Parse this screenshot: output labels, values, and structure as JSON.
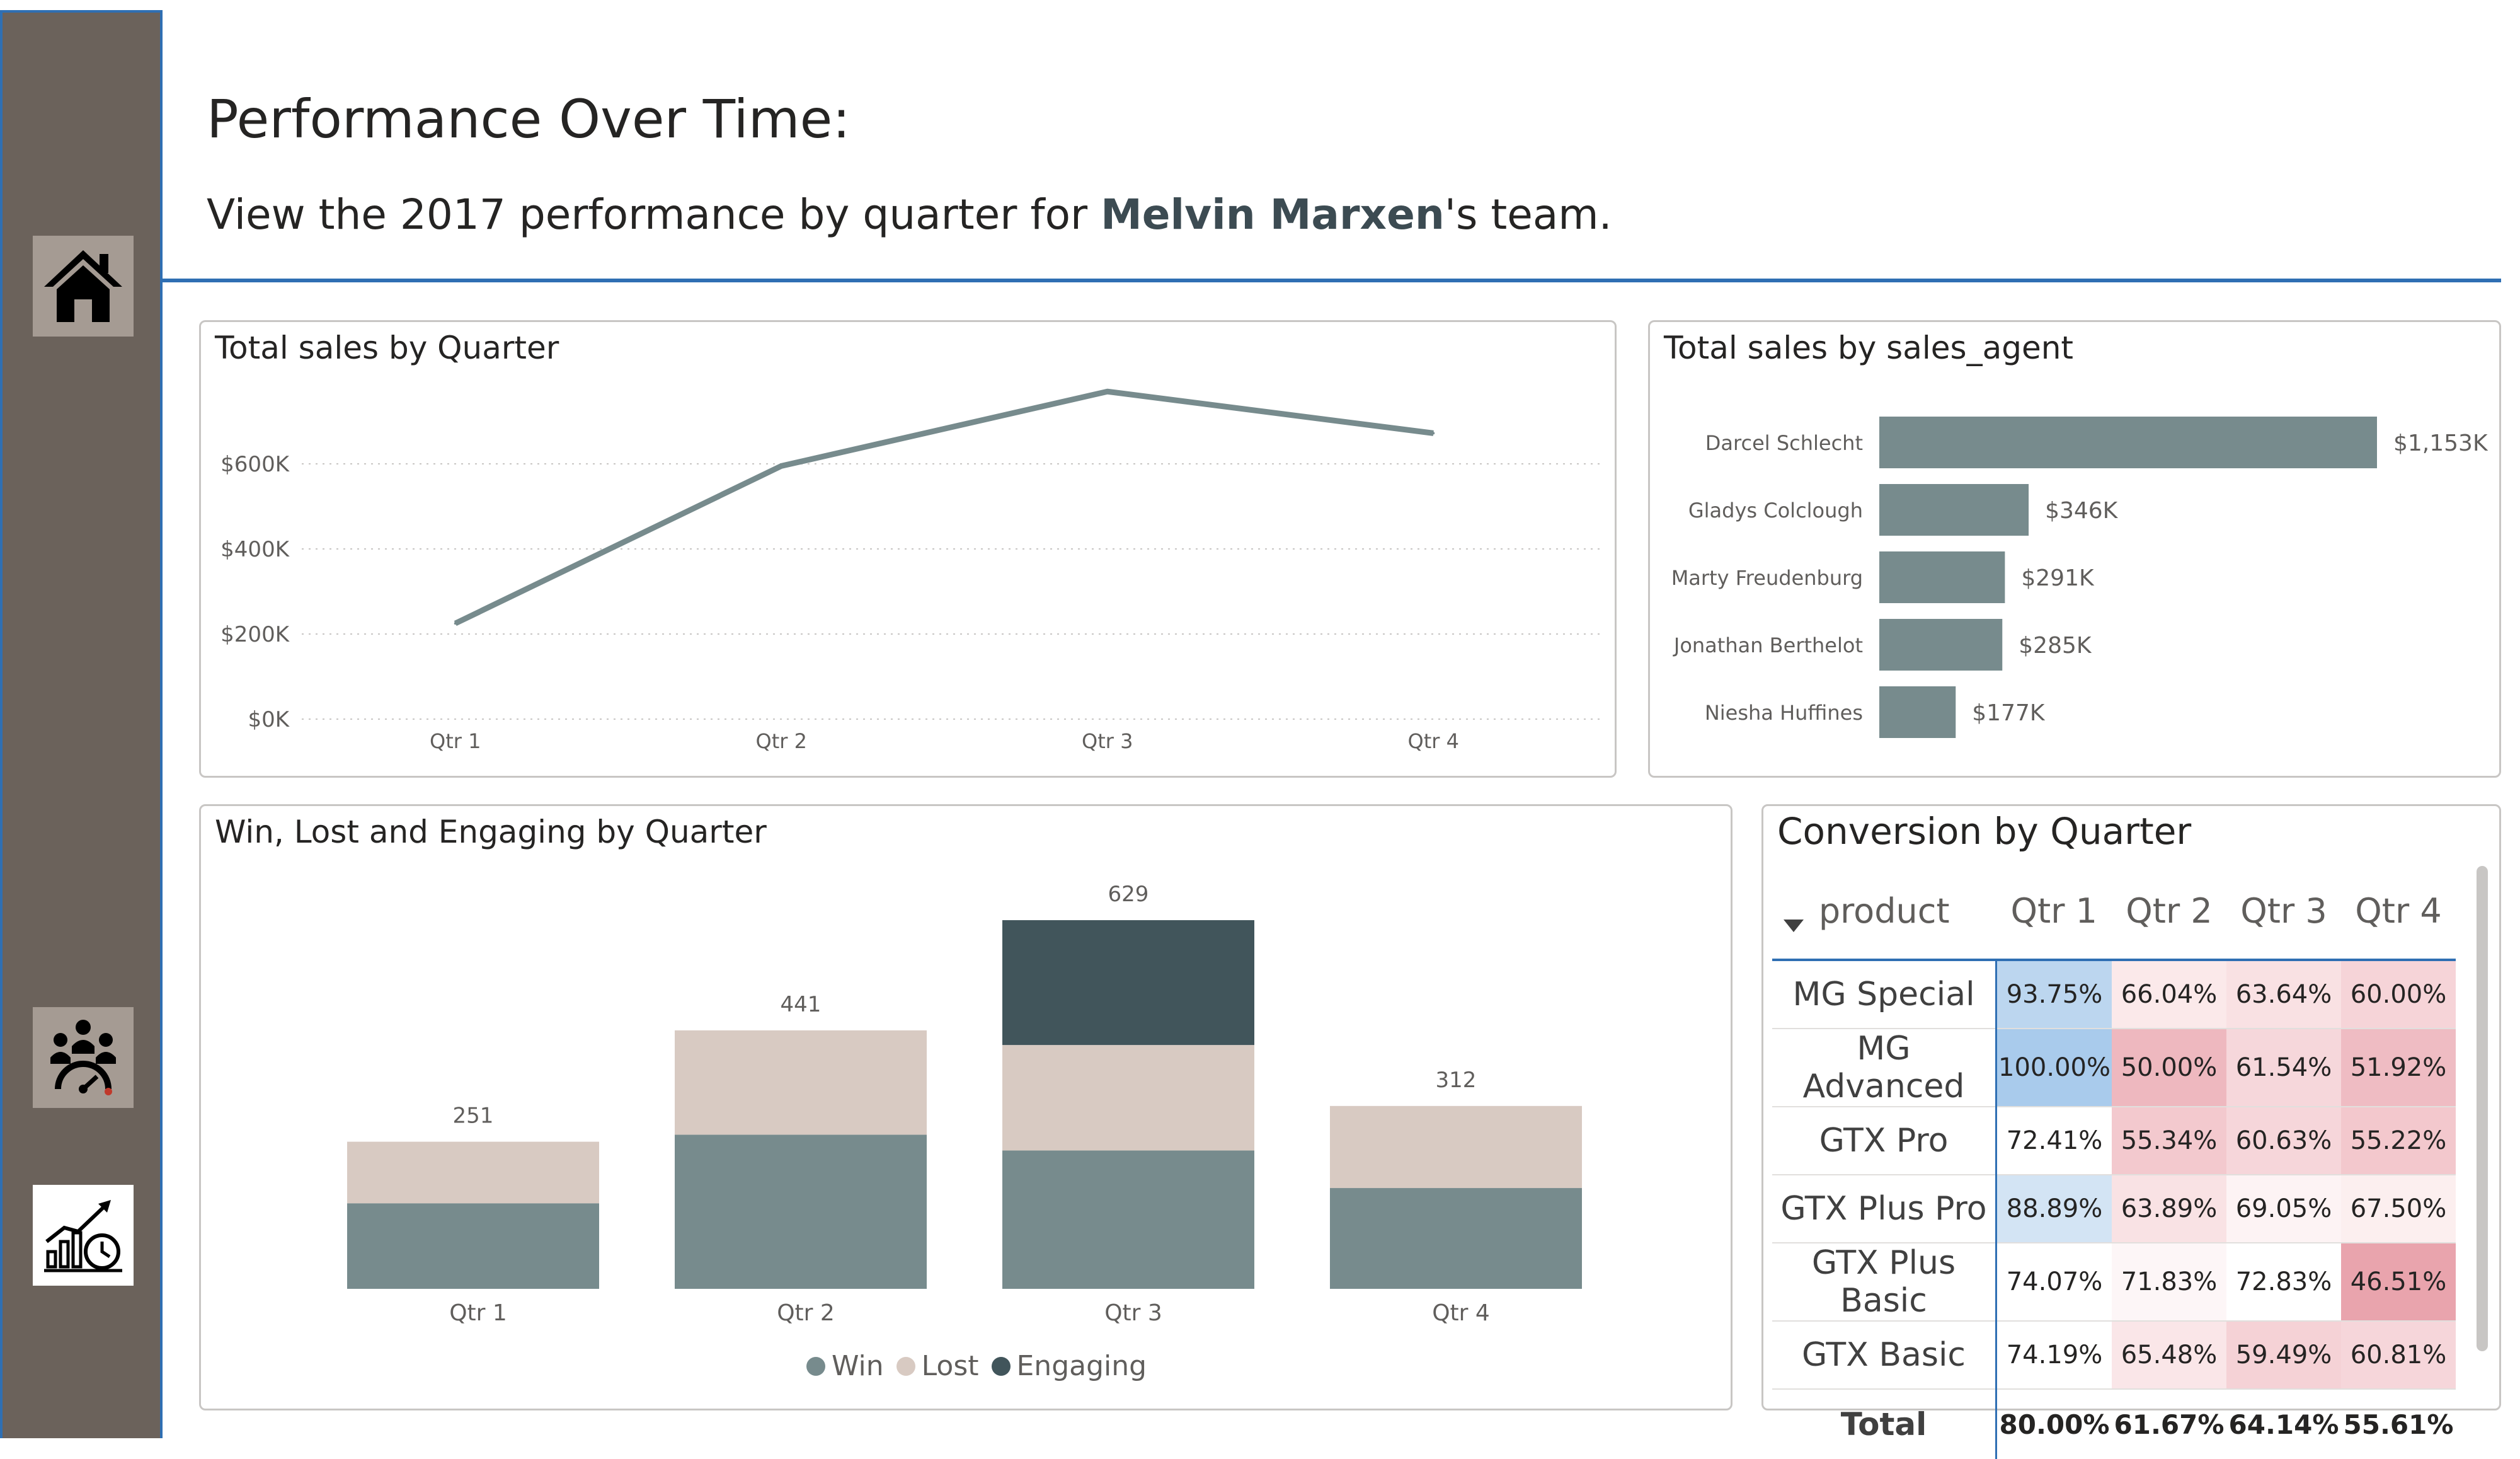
{
  "header": {
    "title": "Performance Over Time:",
    "subtitle_prefix": "View the 2017 performance by quarter for ",
    "manager": "Melvin Marxen",
    "subtitle_suffix": "'s team."
  },
  "nav": {
    "items": [
      {
        "name": "home-icon"
      },
      {
        "name": "team-performance-icon"
      },
      {
        "name": "growth-chart-icon"
      }
    ]
  },
  "colors": {
    "accent": "#2f6fb3",
    "sidebar": "#6b625b",
    "win": "#778b8d",
    "lost": "#d8cac2",
    "engaging": "#41555b"
  },
  "chart_data": [
    {
      "type": "line",
      "title": "Total sales by Quarter",
      "categories": [
        "Qtr 1",
        "Qtr 2",
        "Qtr 3",
        "Qtr 4"
      ],
      "values": [
        225000,
        595000,
        770000,
        672000
      ],
      "ylim": [
        0,
        800000
      ],
      "yticks": [
        0,
        200000,
        400000,
        600000
      ],
      "ytick_labels": [
        "$0K",
        "$200K",
        "$400K",
        "$600K"
      ],
      "grid": true
    },
    {
      "type": "bar",
      "orientation": "horizontal",
      "title": "Total sales by sales_agent",
      "categories": [
        "Darcel Schlecht",
        "Gladys Colclough",
        "Marty Freudenburg",
        "Jonathan Berthelot",
        "Niesha Huffines"
      ],
      "values": [
        1153,
        346,
        291,
        285,
        177
      ],
      "data_labels": [
        "$1,153K",
        "$346K",
        "$291K",
        "$285K",
        "$177K"
      ]
    },
    {
      "type": "bar",
      "stacked": true,
      "title": "Win, Lost and Engaging by Quarter",
      "categories": [
        "Qtr 1",
        "Qtr 2",
        "Qtr 3",
        "Qtr 4"
      ],
      "series": [
        {
          "name": "Win",
          "values": [
            146,
            263,
            236,
            172
          ]
        },
        {
          "name": "Lost",
          "values": [
            105,
            178,
            180,
            140
          ]
        },
        {
          "name": "Engaging",
          "values": [
            0,
            0,
            213,
            0
          ]
        }
      ],
      "totals": [
        251,
        441,
        629,
        312
      ],
      "ylim": [
        0,
        720
      ],
      "legend": "bottom-center"
    },
    {
      "type": "table",
      "title": "Conversion by Quarter",
      "columns": [
        "product",
        "Qtr 1",
        "Qtr 2",
        "Qtr 3",
        "Qtr 4"
      ],
      "rows": [
        {
          "product": "MG Special",
          "values": [
            "93.75%",
            "66.04%",
            "63.64%",
            "60.00%"
          ],
          "colors": [
            "#bcd6ef",
            "#fbe9ea",
            "#f9e1e3",
            "#f6d4d8"
          ]
        },
        {
          "product": "MG Advanced",
          "values": [
            "100.00%",
            "50.00%",
            "61.54%",
            "51.92%"
          ],
          "colors": [
            "#a9cbec",
            "#eeb8bf",
            "#f6d7db",
            "#efbcc3"
          ]
        },
        {
          "product": "GTX Pro",
          "values": [
            "72.41%",
            "55.34%",
            "60.63%",
            "55.22%"
          ],
          "colors": [
            "#ffffff",
            "#f3c9ce",
            "#f6d6da",
            "#f3c8cd"
          ]
        },
        {
          "product": "GTX Plus Pro",
          "values": [
            "88.89%",
            "63.89%",
            "69.05%",
            "67.50%"
          ],
          "colors": [
            "#d3e4f4",
            "#f9e2e4",
            "#fdf3f4",
            "#fcefef"
          ]
        },
        {
          "product": "GTX Plus Basic",
          "values": [
            "74.07%",
            "71.83%",
            "72.83%",
            "46.51%"
          ],
          "colors": [
            "#ffffff",
            "#fdf6f7",
            "#ffffff",
            "#e9a4ad"
          ]
        },
        {
          "product": "GTX Basic",
          "values": [
            "74.19%",
            "65.48%",
            "59.49%",
            "60.81%"
          ],
          "colors": [
            "#ffffff",
            "#fae6e8",
            "#f5d2d6",
            "#f6d6da"
          ]
        }
      ],
      "total": {
        "label": "Total",
        "values": [
          "80.00%",
          "61.67%",
          "64.14%",
          "55.61%"
        ]
      }
    }
  ]
}
